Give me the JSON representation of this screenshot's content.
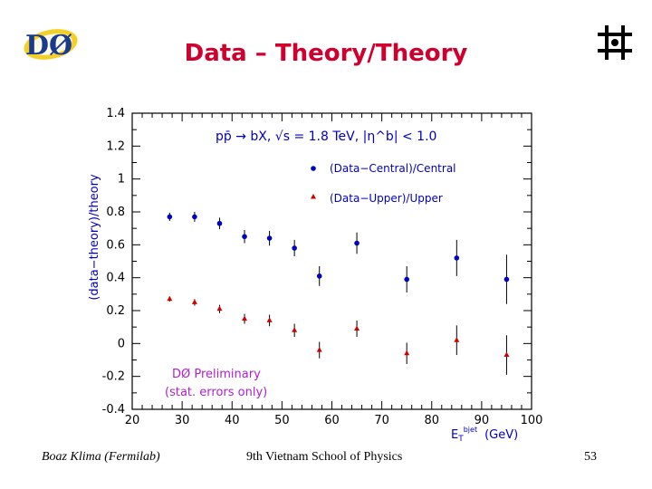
{
  "slide": {
    "title": "Data – Theory/Theory",
    "footer_left": "Boaz Klima (Fermilab)",
    "footer_center": "9th Vietnam School of Physics",
    "page_number": "53"
  },
  "logos": {
    "left": "D0 experiment logo",
    "left_text": "DØ",
    "right": "Fermilab logo"
  },
  "colors": {
    "title": "#d0002e",
    "series_central": "#0000c0",
    "series_upper": "#d00000",
    "annotation": "#0000c0",
    "preliminary": "#b020d0"
  },
  "chart_data": {
    "type": "scatter",
    "title": "",
    "annotation": "pp̄ → bX,  √s = 1.8 TeV,  |η^b| < 1.0",
    "preliminary_line1": "DØ Preliminary",
    "preliminary_line2": "(stat. errors only)",
    "xlabel": "E_T^{bjet} (GeV)",
    "xlabel_main": "E",
    "xlabel_sub": "T",
    "xlabel_sup": "bjet",
    "xlabel_unit": "(GeV)",
    "ylabel": "(data−theory)/theory",
    "xlim": [
      20,
      100
    ],
    "ylim": [
      -0.4,
      1.4
    ],
    "xticks": [
      "20",
      "30",
      "40",
      "50",
      "60",
      "70",
      "80",
      "90",
      "100"
    ],
    "yticks": [
      "-0.4",
      "-0.2",
      "0",
      "0.2",
      "0.4",
      "0.6",
      "0.8",
      "1",
      "1.2",
      "1.4"
    ],
    "legend_position": "top-right",
    "series": [
      {
        "name": "(Data−Central)/Central",
        "marker": "circle",
        "x": [
          27.5,
          32.5,
          37.5,
          42.5,
          47.5,
          52.5,
          57.5,
          65,
          75,
          85,
          95
        ],
        "y": [
          0.77,
          0.77,
          0.73,
          0.65,
          0.64,
          0.58,
          0.41,
          0.61,
          0.39,
          0.52,
          0.39
        ],
        "err": [
          0.025,
          0.03,
          0.035,
          0.04,
          0.045,
          0.05,
          0.06,
          0.065,
          0.08,
          0.11,
          0.15
        ]
      },
      {
        "name": "(Data−Upper)/Upper",
        "marker": "triangle",
        "x": [
          27.5,
          32.5,
          37.5,
          42.5,
          47.5,
          52.5,
          57.5,
          65,
          75,
          85,
          95
        ],
        "y": [
          0.27,
          0.25,
          0.21,
          0.15,
          0.14,
          0.08,
          -0.04,
          0.09,
          -0.06,
          0.02,
          -0.07
        ],
        "err": [
          0.015,
          0.02,
          0.025,
          0.03,
          0.035,
          0.04,
          0.05,
          0.05,
          0.065,
          0.09,
          0.12
        ]
      }
    ]
  }
}
